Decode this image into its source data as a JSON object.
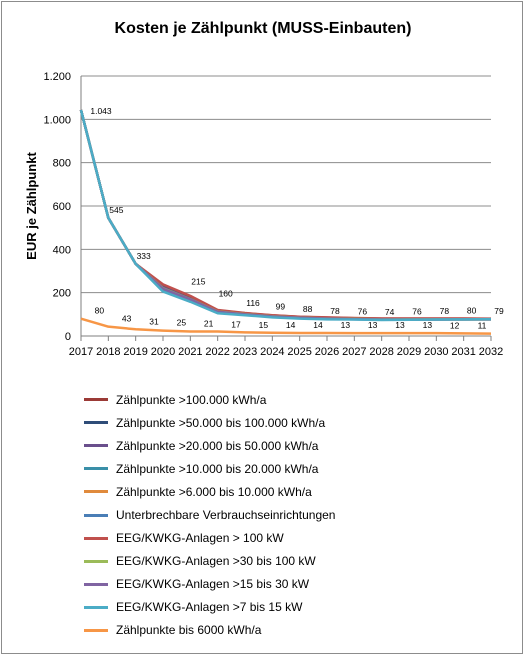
{
  "chart_data": {
    "type": "line",
    "title": "Kosten je Zählpunkt (MUSS-Einbauten)",
    "xlabel": "",
    "ylabel": "EUR je Zählpunkt",
    "x": [
      "2017",
      "2018",
      "2019",
      "2020",
      "2021",
      "2022",
      "2023",
      "2024",
      "2025",
      "2026",
      "2027",
      "2028",
      "2029",
      "2030",
      "2031",
      "2032"
    ],
    "ylim": [
      0,
      1200
    ],
    "yticks": [
      0,
      200,
      400,
      600,
      800,
      1000,
      1200
    ],
    "ytick_labels": [
      "0",
      "200",
      "400",
      "600",
      "800",
      "1.000",
      "1.200"
    ],
    "grid": true,
    "legend_position": "bottom",
    "series": [
      {
        "name": "Zählpunkte >100.000 kWh/a",
        "color": "#9b3a36",
        "values": [
          1043,
          545,
          333,
          235,
          180,
          118,
          105,
          95,
          88,
          85,
          82,
          80,
          80,
          80,
          80,
          79
        ]
      },
      {
        "name": "Zählpunkte >50.000 bis 100.000 kWh/a",
        "color": "#2f4d78",
        "values": [
          1043,
          545,
          333,
          228,
          175,
          115,
          103,
          93,
          86,
          83,
          80,
          79,
          79,
          79,
          79,
          78
        ]
      },
      {
        "name": "Zählpunkte >20.000 bis 50.000 kWh/a",
        "color": "#6a4f8c",
        "values": [
          1043,
          545,
          333,
          225,
          172,
          114,
          102,
          92,
          85,
          82,
          80,
          78,
          78,
          78,
          78,
          78
        ]
      },
      {
        "name": "Zählpunkte >10.000 bis 20.000 kWh/a",
        "color": "#3a8fa8",
        "values": [
          1043,
          545,
          333,
          215,
          168,
          112,
          100,
          90,
          84,
          81,
          79,
          77,
          77,
          77,
          78,
          78
        ]
      },
      {
        "name": "Zählpunkte >6.000 bis 10.000 kWh/a",
        "color": "#e08a3c",
        "values": [
          1043,
          545,
          333,
          212,
          165,
          110,
          99,
          89,
          83,
          80,
          78,
          76,
          76,
          77,
          77,
          77
        ]
      },
      {
        "name": "Unterbrechbare Verbrauchseinrichtungen",
        "color": "#4a7eb6",
        "values": [
          1043,
          545,
          333,
          210,
          160,
          108,
          98,
          88,
          82,
          79,
          77,
          75,
          75,
          76,
          76,
          77
        ]
      },
      {
        "name": "EEG/KWKG-Anlagen > 100 kW",
        "color": "#c0504d",
        "values": [
          1043,
          545,
          333,
          238,
          185,
          120,
          106,
          96,
          89,
          86,
          83,
          81,
          81,
          81,
          81,
          80
        ]
      },
      {
        "name": "EEG/KWKG-Anlagen >30 bis 100 kW",
        "color": "#9bbb59",
        "values": [
          1043,
          545,
          333,
          220,
          170,
          113,
          101,
          91,
          85,
          81,
          79,
          77,
          77,
          77,
          77,
          77
        ]
      },
      {
        "name": "EEG/KWKG-Anlagen >15 bis 30 kW",
        "color": "#8064a2",
        "values": [
          1043,
          545,
          333,
          218,
          169,
          112,
          100,
          90,
          84,
          80,
          78,
          76,
          76,
          76,
          77,
          77
        ]
      },
      {
        "name": "EEG/KWKG-Anlagen >7 bis 15 kW",
        "color": "#4bacc6",
        "values": [
          1043,
          545,
          333,
          205,
          158,
          105,
          96,
          86,
          80,
          77,
          76,
          74,
          75,
          76,
          77,
          78
        ]
      },
      {
        "name": "Zählpunkte bis 6000 kWh/a",
        "color": "#f79646",
        "values": [
          80,
          43,
          31,
          25,
          21,
          21,
          17,
          15,
          14,
          14,
          13,
          13,
          13,
          13,
          12,
          11
        ]
      }
    ],
    "annotations_upper": [
      {
        "x": "2017",
        "text": "1.043",
        "value": 1043
      },
      {
        "x": "2018",
        "text": "545",
        "value": 545
      },
      {
        "x": "2019",
        "text": "333",
        "value": 333
      },
      {
        "x": "2021",
        "text": "215",
        "value": 215
      },
      {
        "x": "2022",
        "text": "160",
        "value": 160
      },
      {
        "x": "2023",
        "text": "116",
        "value": 116
      },
      {
        "x": "2024",
        "text": "99",
        "value": 99
      },
      {
        "x": "2025",
        "text": "88",
        "value": 88
      },
      {
        "x": "2026",
        "text": "78",
        "value": 78
      },
      {
        "x": "2027",
        "text": "76",
        "value": 76
      },
      {
        "x": "2028",
        "text": "74",
        "value": 74
      },
      {
        "x": "2029",
        "text": "76",
        "value": 76
      },
      {
        "x": "2030",
        "text": "78",
        "value": 78
      },
      {
        "x": "2031",
        "text": "80",
        "value": 80
      },
      {
        "x": "2032",
        "text": "79",
        "value": 79
      }
    ],
    "annotations_lower": [
      {
        "x": "2018",
        "text": "80",
        "value": 80
      },
      {
        "x": "2019",
        "text": "43",
        "value": 43
      },
      {
        "x": "2020",
        "text": "31",
        "value": 31
      },
      {
        "x": "2021",
        "text": "25",
        "value": 25
      },
      {
        "x": "2022",
        "text": "21",
        "value": 21
      },
      {
        "x": "2023",
        "text": "17",
        "value": 17
      },
      {
        "x": "2024",
        "text": "15",
        "value": 15
      },
      {
        "x": "2025",
        "text": "14",
        "value": 14
      },
      {
        "x": "2026",
        "text": "14",
        "value": 14
      },
      {
        "x": "2027",
        "text": "13",
        "value": 13
      },
      {
        "x": "2028",
        "text": "13",
        "value": 13
      },
      {
        "x": "2029",
        "text": "13",
        "value": 13
      },
      {
        "x": "2030",
        "text": "13",
        "value": 13
      },
      {
        "x": "2031",
        "text": "12",
        "value": 12
      },
      {
        "x": "2032",
        "text": "11",
        "value": 11
      }
    ]
  }
}
